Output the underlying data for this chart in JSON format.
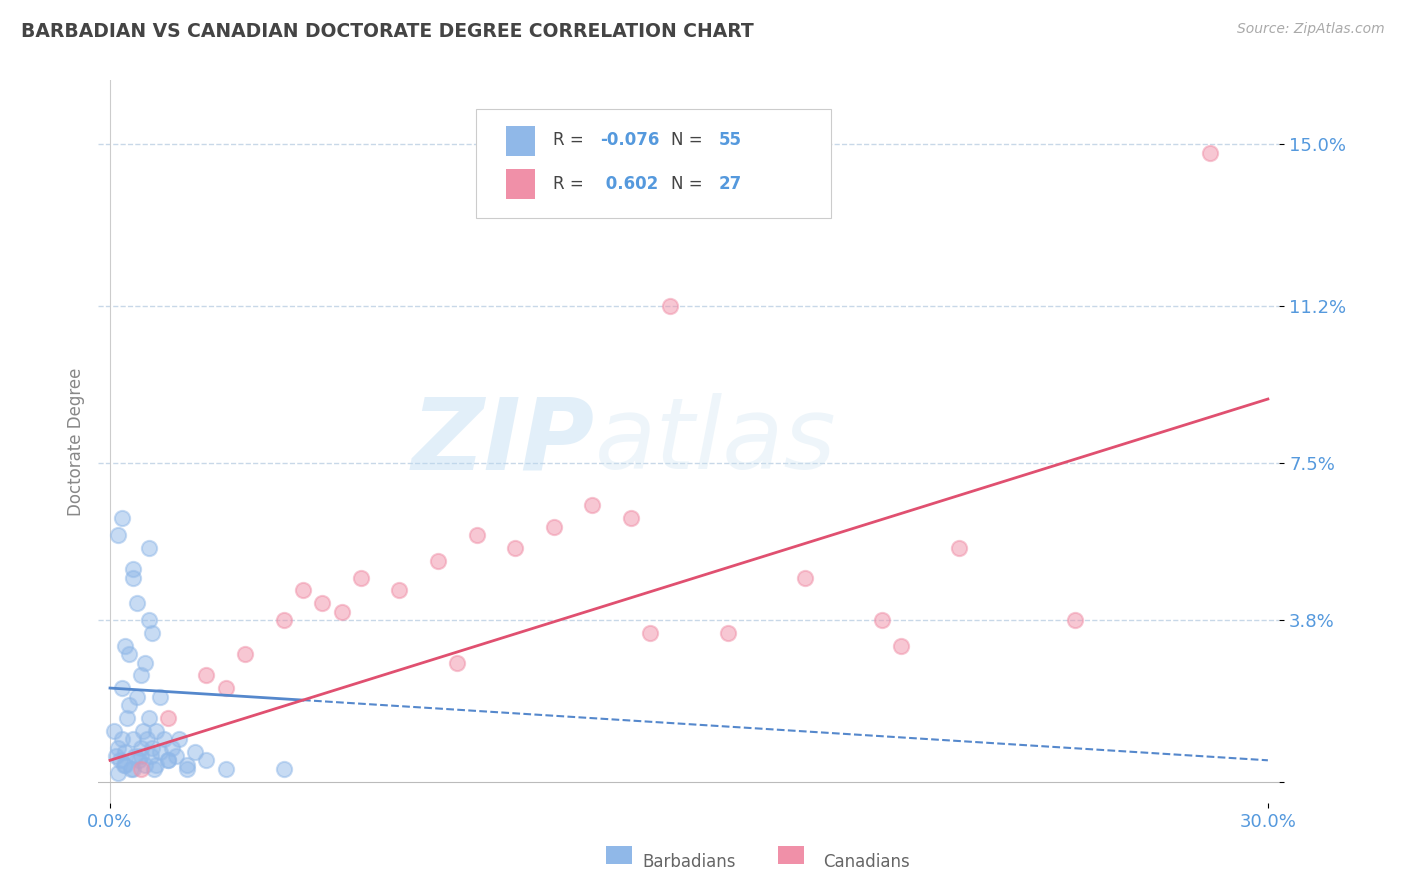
{
  "title": "BARBADIAN VS CANADIAN DOCTORATE DEGREE CORRELATION CHART",
  "source_text": "Source: ZipAtlas.com",
  "ylabel": "Doctorate Degree",
  "xlim": [
    -0.3,
    30.3
  ],
  "ylim": [
    -0.5,
    16.5
  ],
  "yticks": [
    0.0,
    3.8,
    7.5,
    11.2,
    15.0
  ],
  "ytick_labels": [
    "",
    "3.8%",
    "7.5%",
    "11.2%",
    "15.0%"
  ],
  "xtick_labels": [
    "0.0%",
    "30.0%"
  ],
  "barbadian_color": "#90b8e8",
  "canadian_color": "#f090a8",
  "barbadian_line_color": "#5588cc",
  "canadian_line_color": "#e05070",
  "background_color": "#ffffff",
  "grid_color": "#c8d8e8",
  "axis_label_color": "#5599dd",
  "title_color": "#444444",
  "legend_R_barbadian": "-0.076",
  "legend_N_barbadian": "55",
  "legend_R_canadian": "0.602",
  "legend_N_canadian": "27",
  "watermark_zip": "ZIP",
  "watermark_atlas": "atlas",
  "barbadian_x": [
    0.1,
    0.15,
    0.2,
    0.25,
    0.3,
    0.35,
    0.4,
    0.45,
    0.5,
    0.55,
    0.6,
    0.65,
    0.7,
    0.75,
    0.8,
    0.85,
    0.9,
    0.95,
    1.0,
    1.05,
    1.1,
    1.15,
    1.2,
    1.3,
    1.4,
    1.5,
    1.6,
    1.7,
    1.8,
    2.0,
    2.2,
    2.5,
    3.0,
    0.2,
    0.4,
    0.6,
    0.8,
    1.0,
    0.3,
    0.5,
    0.7,
    0.9,
    1.1,
    1.3,
    0.2,
    0.4,
    0.6,
    0.8,
    1.2,
    1.5,
    2.0,
    0.3,
    0.6,
    1.0,
    4.5
  ],
  "barbadian_y": [
    1.2,
    0.6,
    0.8,
    0.5,
    1.0,
    0.4,
    0.7,
    1.5,
    1.8,
    0.3,
    1.0,
    0.6,
    2.0,
    0.5,
    0.8,
    1.2,
    0.4,
    1.0,
    1.5,
    0.6,
    0.8,
    0.3,
    1.2,
    0.7,
    1.0,
    0.5,
    0.8,
    0.6,
    1.0,
    0.4,
    0.7,
    0.5,
    0.3,
    5.8,
    3.2,
    4.8,
    2.5,
    3.8,
    2.2,
    3.0,
    4.2,
    2.8,
    3.5,
    2.0,
    0.2,
    0.4,
    0.3,
    0.6,
    0.4,
    0.5,
    0.3,
    6.2,
    5.0,
    5.5,
    0.3
  ],
  "canadian_x": [
    0.8,
    1.5,
    2.5,
    3.5,
    4.5,
    5.5,
    6.5,
    7.5,
    8.5,
    9.5,
    10.5,
    11.5,
    12.5,
    13.5,
    14.5,
    16.0,
    18.0,
    20.0,
    22.0,
    25.0,
    28.5,
    6.0,
    14.0,
    3.0,
    5.0,
    20.5,
    9.0
  ],
  "canadian_y": [
    0.3,
    1.5,
    2.5,
    3.0,
    3.8,
    4.2,
    4.8,
    4.5,
    5.2,
    5.8,
    5.5,
    6.0,
    6.5,
    6.2,
    11.2,
    3.5,
    4.8,
    3.8,
    5.5,
    3.8,
    14.8,
    4.0,
    3.5,
    2.2,
    4.5,
    3.2,
    2.8
  ],
  "barb_trend_x0": 0.0,
  "barb_trend_x1": 30.0,
  "barb_trend_y0": 2.2,
  "barb_trend_y1": 0.5,
  "can_trend_x0": 0.0,
  "can_trend_x1": 30.0,
  "can_trend_y0": 0.5,
  "can_trend_y1": 9.0
}
